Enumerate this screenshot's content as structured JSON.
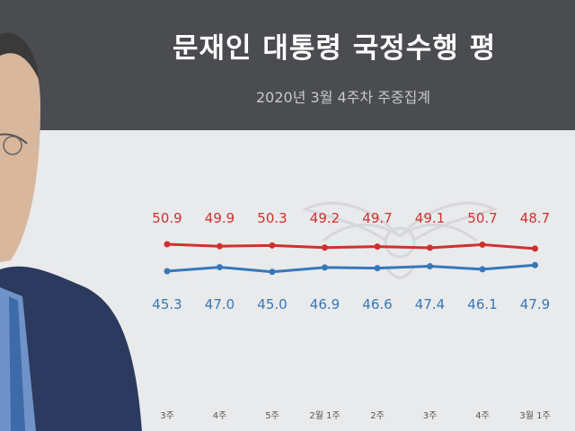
{
  "header": {
    "title": "문재인 대통령 국정수행 평",
    "subtitle": "2020년 3월 4주차 주중집계"
  },
  "colors": {
    "negative": "#d0312d",
    "positive": "#3777b8",
    "header_bg": "#4a4c50",
    "plot_bg": "#e9eaec"
  },
  "chart_data": {
    "type": "line",
    "title": "문재인 대통령 국정수행 평",
    "subtitle": "2020년 3월 4주차 주중집계",
    "categories": [
      "3주",
      "4주",
      "5주",
      "2월 1주",
      "2주",
      "3주",
      "4주",
      "3월 1주"
    ],
    "series": [
      {
        "values": [
          50.9,
          49.9,
          50.3,
          49.2,
          49.7,
          49.1,
          50.7,
          48.7
        ],
        "color": "#d0312d"
      },
      {
        "values": [
          45.3,
          47.0,
          45.0,
          46.9,
          46.6,
          47.4,
          46.1,
          47.9
        ],
        "color": "#3777b8"
      }
    ],
    "ylim": [
      40,
      56
    ],
    "grid": false,
    "legend": "none"
  }
}
